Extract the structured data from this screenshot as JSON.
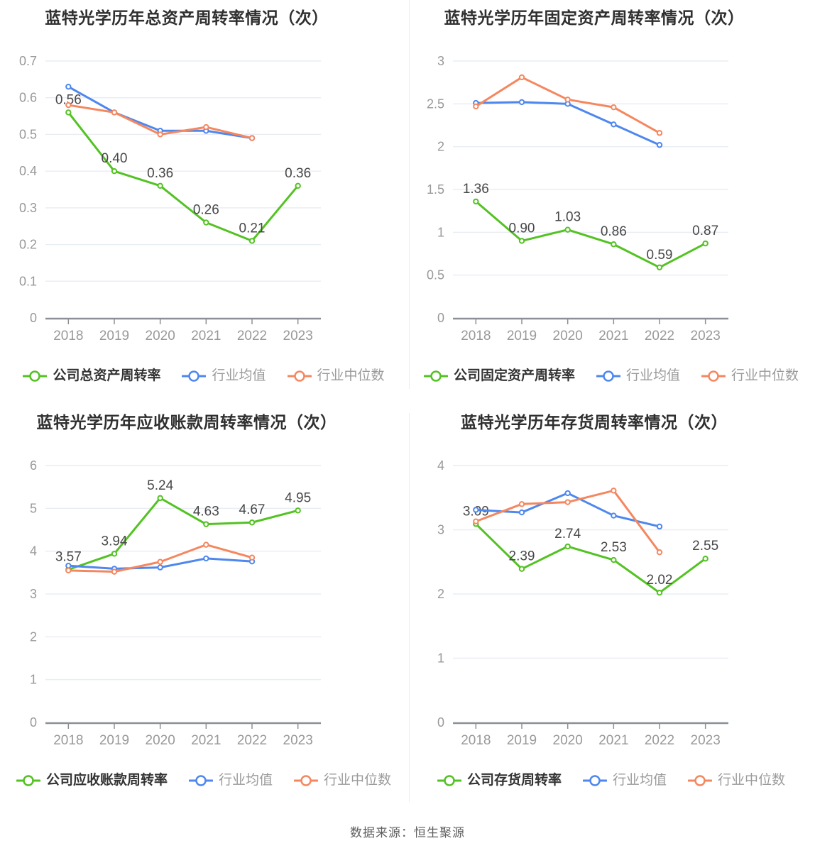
{
  "theme": {
    "series_colors": {
      "company": "#53c223",
      "industry_avg": "#4e87ee",
      "industry_median": "#f5875f"
    },
    "grid_color": "#e9edf4",
    "axis_color": "#8c9096",
    "tick_color": "#999999",
    "label_color": "#474747",
    "title_color": "#2f2f2f",
    "legend_primary_color": "#333333",
    "legend_secondary_color": "#9b9b9b",
    "footer_color": "#5f5f5f"
  },
  "footer": {
    "source_text": "数据来源：恒生聚源"
  },
  "chart_data": [
    {
      "type": "line",
      "title": "蓝特光学历年总资产周转率情况（次）",
      "categories": [
        "2018",
        "2019",
        "2020",
        "2021",
        "2022",
        "2023"
      ],
      "ylim": [
        0,
        0.7
      ],
      "yticks": [
        "0",
        "0.1",
        "0.2",
        "0.3",
        "0.4",
        "0.5",
        "0.6",
        "0.7"
      ],
      "grid": "horizontal-only",
      "legend_position": "bottom",
      "series": [
        {
          "name": "公司总资产周转率",
          "color_key": "company",
          "show_labels": true,
          "values": [
            0.56,
            0.4,
            0.36,
            0.26,
            0.21,
            0.36
          ]
        },
        {
          "name": "行业均值",
          "color_key": "industry_avg",
          "show_labels": false,
          "values": [
            0.63,
            0.56,
            0.51,
            0.51,
            0.49
          ]
        },
        {
          "name": "行业中位数",
          "color_key": "industry_median",
          "show_labels": false,
          "values": [
            0.58,
            0.56,
            0.5,
            0.52,
            0.49
          ]
        }
      ]
    },
    {
      "type": "line",
      "title": "蓝特光学历年固定资产周转率情况（次）",
      "categories": [
        "2018",
        "2019",
        "2020",
        "2021",
        "2022",
        "2023"
      ],
      "ylim": [
        0,
        3
      ],
      "yticks": [
        "0",
        "0.5",
        "1",
        "1.5",
        "2",
        "2.5",
        "3"
      ],
      "grid": "horizontal-only",
      "legend_position": "bottom",
      "series": [
        {
          "name": "公司固定资产周转率",
          "color_key": "company",
          "show_labels": true,
          "values": [
            1.36,
            0.9,
            1.03,
            0.86,
            0.59,
            0.87
          ]
        },
        {
          "name": "行业均值",
          "color_key": "industry_avg",
          "show_labels": false,
          "values": [
            2.51,
            2.52,
            2.5,
            2.26,
            2.02
          ]
        },
        {
          "name": "行业中位数",
          "color_key": "industry_median",
          "show_labels": false,
          "values": [
            2.47,
            2.81,
            2.55,
            2.46,
            2.16
          ]
        }
      ]
    },
    {
      "type": "line",
      "title": "蓝特光学历年应收账款周转率情况（次）",
      "categories": [
        "2018",
        "2019",
        "2020",
        "2021",
        "2022",
        "2023"
      ],
      "ylim": [
        0,
        6
      ],
      "yticks": [
        "0",
        "1",
        "2",
        "3",
        "4",
        "5",
        "6"
      ],
      "grid": "horizontal-only",
      "legend_position": "bottom",
      "series": [
        {
          "name": "公司应收账款周转率",
          "color_key": "company",
          "show_labels": true,
          "values": [
            3.57,
            3.94,
            5.24,
            4.63,
            4.67,
            4.95
          ]
        },
        {
          "name": "行业均值",
          "color_key": "industry_avg",
          "show_labels": false,
          "values": [
            3.66,
            3.59,
            3.62,
            3.83,
            3.76
          ]
        },
        {
          "name": "行业中位数",
          "color_key": "industry_median",
          "show_labels": false,
          "values": [
            3.55,
            3.52,
            3.75,
            4.15,
            3.85
          ]
        }
      ]
    },
    {
      "type": "line",
      "title": "蓝特光学历年存货周转率情况（次）",
      "categories": [
        "2018",
        "2019",
        "2020",
        "2021",
        "2022",
        "2023"
      ],
      "ylim": [
        0,
        4
      ],
      "yticks": [
        "0",
        "1",
        "2",
        "3",
        "4"
      ],
      "grid": "horizontal-only",
      "legend_position": "bottom",
      "series": [
        {
          "name": "公司存货周转率",
          "color_key": "company",
          "show_labels": true,
          "values": [
            3.09,
            2.39,
            2.74,
            2.53,
            2.02,
            2.55
          ]
        },
        {
          "name": "行业均值",
          "color_key": "industry_avg",
          "show_labels": false,
          "values": [
            3.31,
            3.27,
            3.57,
            3.22,
            3.05
          ]
        },
        {
          "name": "行业中位数",
          "color_key": "industry_median",
          "show_labels": false,
          "values": [
            3.13,
            3.4,
            3.43,
            3.61,
            2.65
          ]
        }
      ]
    }
  ]
}
